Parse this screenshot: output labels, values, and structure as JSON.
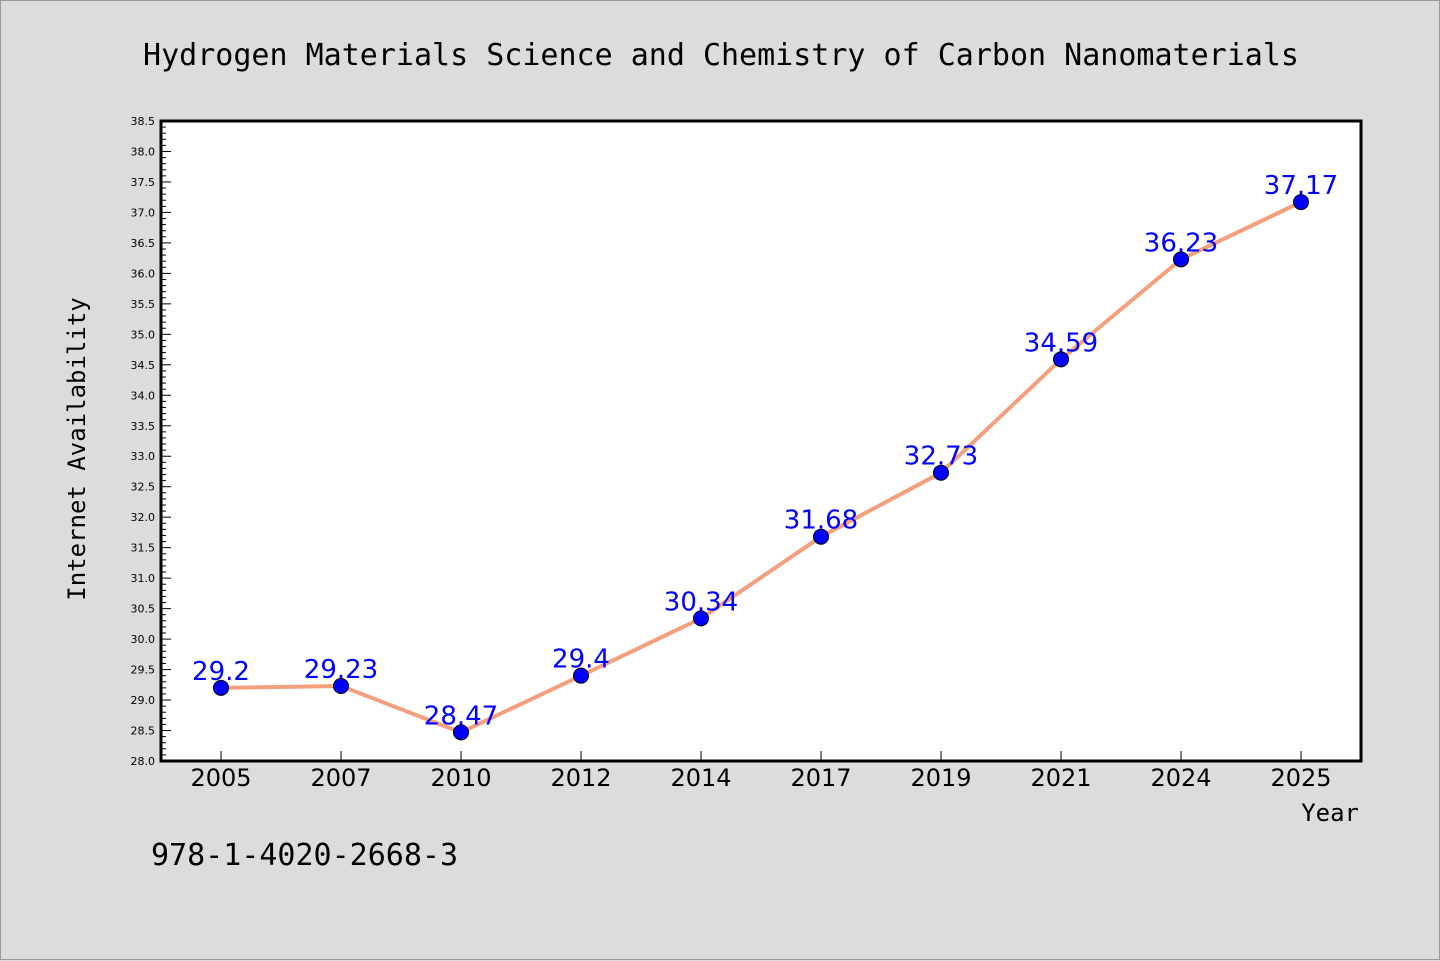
{
  "chart_data": {
    "type": "line",
    "title": "Hydrogen Materials Science and Chemistry of Carbon Nanomaterials",
    "xlabel": "Year",
    "ylabel": "Internet Availability",
    "categories": [
      "2005",
      "2007",
      "2010",
      "2012",
      "2014",
      "2017",
      "2019",
      "2021",
      "2024",
      "2025"
    ],
    "series": [
      {
        "values": [
          29.2,
          29.23,
          28.47,
          29.4,
          30.34,
          31.68,
          32.73,
          34.59,
          36.23,
          37.17
        ],
        "data_labels": [
          "29.2",
          "29.23",
          "28.47",
          "29.4",
          "30.34",
          "31.68",
          "32.73",
          "34.59",
          "36.23",
          "37.17"
        ]
      }
    ],
    "ylim": [
      28.0,
      38.5
    ],
    "yticks": [
      "28.0",
      "28.5",
      "29.0",
      "29.5",
      "30.0",
      "30.5",
      "31.0",
      "31.5",
      "32.0",
      "32.5",
      "33.0",
      "33.5",
      "34.0",
      "34.5",
      "35.0",
      "35.5",
      "36.0",
      "36.5",
      "37.0",
      "37.5",
      "38.0",
      "38.5"
    ],
    "grid": false,
    "legend": "none",
    "colors": {
      "line": "#f4a07e",
      "marker": "#0000ff",
      "data_label": "#0000ff",
      "background": "#dcdcdc",
      "plot_area": "#ffffff"
    }
  },
  "footnote": "978-1-4020-2668-3"
}
